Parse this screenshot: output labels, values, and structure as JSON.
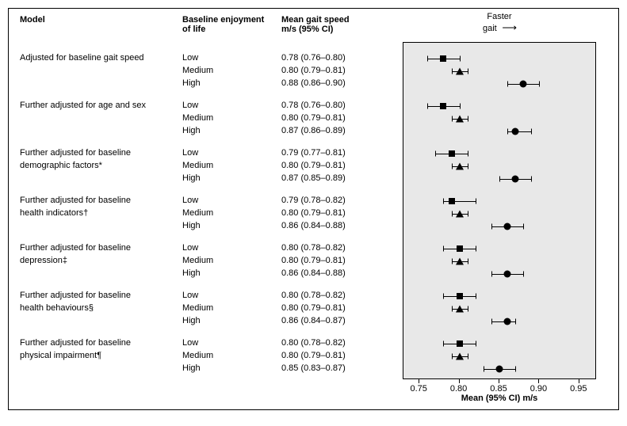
{
  "columns": {
    "model": "Model",
    "level": "Baseline enjoyment\nof life",
    "value": "Mean gait speed\nm/s (95% CI)"
  },
  "chart": {
    "headerTop": "Faster",
    "headerBottom": "gait",
    "xmin": 0.73,
    "xmax": 0.97,
    "ticks": [
      0.75,
      0.8,
      0.85,
      0.9,
      0.95
    ],
    "tickLabels": [
      "0.75",
      "0.80",
      "0.85",
      "0.90",
      "0.95"
    ],
    "xAxisLabel": "Mean (95% CI) m/s",
    "plotAreaBg": "#e8e8e8",
    "markerColor": "#000000",
    "markers": {
      "Low": "square",
      "Medium": "triangle",
      "High": "circle"
    }
  },
  "models": [
    {
      "label": [
        "Adjusted for baseline gait speed"
      ],
      "rows": [
        {
          "level": "Low",
          "display": "0.78 (0.76–0.80)",
          "mean": 0.78,
          "lo": 0.76,
          "hi": 0.8
        },
        {
          "level": "Medium",
          "display": "0.80 (0.79–0.81)",
          "mean": 0.8,
          "lo": 0.79,
          "hi": 0.81
        },
        {
          "level": "High",
          "display": "0.88 (0.86–0.90)",
          "mean": 0.88,
          "lo": 0.86,
          "hi": 0.9
        }
      ]
    },
    {
      "label": [
        "Further adjusted for age and sex"
      ],
      "rows": [
        {
          "level": "Low",
          "display": "0.78 (0.76–0.80)",
          "mean": 0.78,
          "lo": 0.76,
          "hi": 0.8
        },
        {
          "level": "Medium",
          "display": "0.80 (0.79–0.81)",
          "mean": 0.8,
          "lo": 0.79,
          "hi": 0.81
        },
        {
          "level": "High",
          "display": "0.87 (0.86–0.89)",
          "mean": 0.87,
          "lo": 0.86,
          "hi": 0.89
        }
      ]
    },
    {
      "label": [
        "Further adjusted for baseline",
        "demographic factors*"
      ],
      "rows": [
        {
          "level": "Low",
          "display": "0.79 (0.77–0.81)",
          "mean": 0.79,
          "lo": 0.77,
          "hi": 0.81
        },
        {
          "level": "Medium",
          "display": "0.80 (0.79–0.81)",
          "mean": 0.8,
          "lo": 0.79,
          "hi": 0.81
        },
        {
          "level": "High",
          "display": "0.87 (0.85–0.89)",
          "mean": 0.87,
          "lo": 0.85,
          "hi": 0.89
        }
      ]
    },
    {
      "label": [
        "Further adjusted for baseline",
        "health indicators†"
      ],
      "rows": [
        {
          "level": "Low",
          "display": "0.79 (0.78–0.82)",
          "mean": 0.79,
          "lo": 0.78,
          "hi": 0.82
        },
        {
          "level": "Medium",
          "display": "0.80 (0.79–0.81)",
          "mean": 0.8,
          "lo": 0.79,
          "hi": 0.81
        },
        {
          "level": "High",
          "display": "0.86 (0.84–0.88)",
          "mean": 0.86,
          "lo": 0.84,
          "hi": 0.88
        }
      ]
    },
    {
      "label": [
        "Further adjusted for baseline",
        "depression‡"
      ],
      "rows": [
        {
          "level": "Low",
          "display": "0.80 (0.78–0.82)",
          "mean": 0.8,
          "lo": 0.78,
          "hi": 0.82
        },
        {
          "level": "Medium",
          "display": "0.80 (0.79–0.81)",
          "mean": 0.8,
          "lo": 0.79,
          "hi": 0.81
        },
        {
          "level": "High",
          "display": "0.86 (0.84–0.88)",
          "mean": 0.86,
          "lo": 0.84,
          "hi": 0.88
        }
      ]
    },
    {
      "label": [
        "Further adjusted for baseline",
        "health behaviours§"
      ],
      "rows": [
        {
          "level": "Low",
          "display": "0.80 (0.78–0.82)",
          "mean": 0.8,
          "lo": 0.78,
          "hi": 0.82
        },
        {
          "level": "Medium",
          "display": "0.80 (0.79–0.81)",
          "mean": 0.8,
          "lo": 0.79,
          "hi": 0.81
        },
        {
          "level": "High",
          "display": "0.86 (0.84–0.87)",
          "mean": 0.86,
          "lo": 0.84,
          "hi": 0.87
        }
      ]
    },
    {
      "label": [
        "Further adjusted for baseline",
        "physical impairment¶"
      ],
      "rows": [
        {
          "level": "Low",
          "display": "0.80 (0.78–0.82)",
          "mean": 0.8,
          "lo": 0.78,
          "hi": 0.82
        },
        {
          "level": "Medium",
          "display": "0.80 (0.79–0.81)",
          "mean": 0.8,
          "lo": 0.79,
          "hi": 0.81
        },
        {
          "level": "High",
          "display": "0.85 (0.83–0.87)",
          "mean": 0.85,
          "lo": 0.83,
          "hi": 0.87
        }
      ]
    }
  ]
}
